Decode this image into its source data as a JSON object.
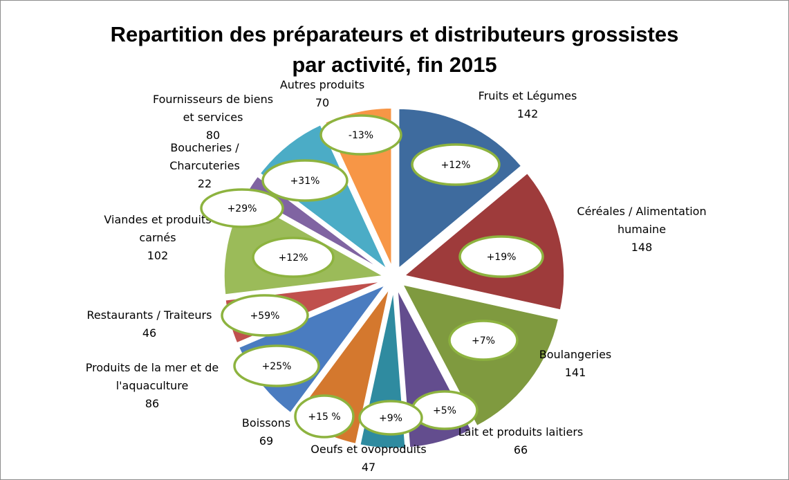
{
  "chart_data": {
    "type": "pie",
    "title_lines": [
      "Repartition des préparateurs et distributeurs grossistes",
      "par activité, fin 2015"
    ],
    "slices": [
      {
        "label_lines": [
          "Fruits et Légumes"
        ],
        "value": 142,
        "change": "+12%",
        "color": "#3e6b9e"
      },
      {
        "label_lines": [
          "Céréales / Alimentation",
          "humaine"
        ],
        "value": 148,
        "change": "+19%",
        "color": "#9e3b3b"
      },
      {
        "label_lines": [
          "Boulangeries"
        ],
        "value": 141,
        "change": "+7%",
        "color": "#7f9a3f"
      },
      {
        "label_lines": [
          "Lait et produits laitiers"
        ],
        "value": 66,
        "change": "+5%",
        "color": "#634d8e"
      },
      {
        "label_lines": [
          "Oeufs et ovoproduits"
        ],
        "value": 47,
        "change": "+9%",
        "color": "#2f8ba0"
      },
      {
        "label_lines": [
          "Boissons"
        ],
        "value": 69,
        "change": "+15 %",
        "color": "#d4782e"
      },
      {
        "label_lines": [
          "Produits de la mer et de",
          "l'aquaculture"
        ],
        "value": 86,
        "change": "+25%",
        "color": "#4a7cc0"
      },
      {
        "label_lines": [
          "Restaurants / Traiteurs"
        ],
        "value": 46,
        "change": "+59%",
        "color": "#c0504d"
      },
      {
        "label_lines": [
          "Viandes et produits",
          "carnés"
        ],
        "value": 102,
        "change": "+12%",
        "color": "#9bbb59"
      },
      {
        "label_lines": [
          "Boucheries /",
          "Charcuteries"
        ],
        "value": 22,
        "change": "+29%",
        "color": "#8064a2"
      },
      {
        "label_lines": [
          "Fournisseurs de biens",
          "et services"
        ],
        "value": 80,
        "change": "+31%",
        "color": "#4bacc6"
      },
      {
        "label_lines": [
          "Autres produits"
        ],
        "value": 70,
        "change": "-13%",
        "color": "#f79646"
      }
    ],
    "legend": "none",
    "data_labels": "category name and value outside slices; percent change in oval callouts"
  }
}
